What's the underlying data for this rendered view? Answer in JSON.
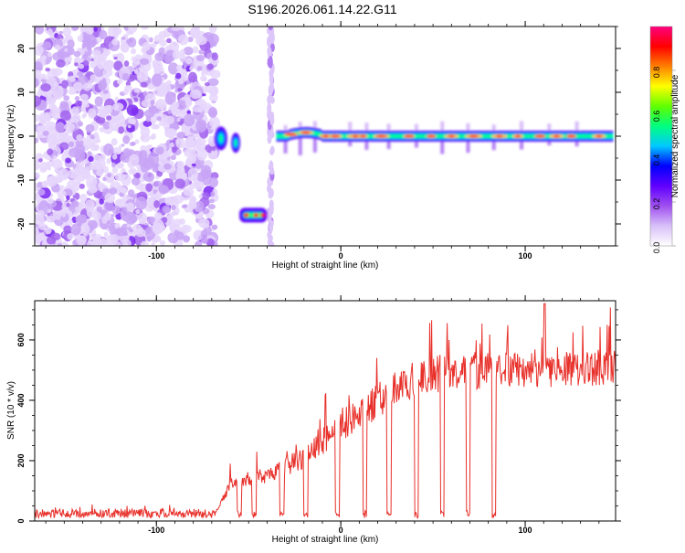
{
  "title": "S196.2026.061.14.22.G11",
  "chart_data": [
    {
      "type": "heatmap",
      "xlabel": "Height of straight line (km)",
      "ylabel": "Frequency (Hz)",
      "xlim": [
        -166,
        149
      ],
      "ylim": [
        -25,
        25
      ],
      "xticks": [
        -100,
        0,
        100
      ],
      "yticks": [
        -20,
        -10,
        0,
        10,
        20
      ],
      "colorbar": {
        "label": "Normalized spectral amplitude",
        "range": [
          0,
          1
        ],
        "ticks": [
          "0.0",
          "0.2",
          "0.4",
          "0.6",
          "0.8"
        ],
        "colors": [
          "#ffffff",
          "#d8c0f8",
          "#a050f0",
          "#6000ff",
          "#0000ff",
          "#00c8ff",
          "#00ff80",
          "#60ff00",
          "#ffff00",
          "#ff8000",
          "#ff0000",
          "#ff0080"
        ]
      },
      "features": [
        {
          "name": "noise-region",
          "x_range": [
            -166,
            -68
          ],
          "y_range": [
            -25,
            25
          ],
          "amplitude": 0.1
        },
        {
          "name": "blob-a",
          "x": -65,
          "y": -0.5,
          "amplitude": 0.4
        },
        {
          "name": "blob-b",
          "x": -57,
          "y": -1.5,
          "amplitude": 0.35
        },
        {
          "name": "low-band",
          "x_range": [
            -55,
            -40
          ],
          "y": -18,
          "amplitude": 0.7
        },
        {
          "name": "vertical-streak",
          "x": -38,
          "y_range": [
            -25,
            25
          ],
          "amplitude": 0.15
        },
        {
          "name": "main-line",
          "x_range": [
            -35,
            149
          ],
          "y": 0,
          "amplitude": 0.75
        }
      ]
    },
    {
      "type": "line",
      "xlabel": "Height of straight line (km)",
      "ylabel": "SNR (10 * v/v)",
      "xlim": [
        -166,
        149
      ],
      "ylim": [
        0,
        730
      ],
      "xticks": [
        -100,
        0,
        100
      ],
      "yticks": [
        0,
        200,
        400,
        600
      ],
      "series": [
        {
          "name": "SNR",
          "color": "#e8302a",
          "envelope_x": [
            -166,
            -68,
            -60,
            -50,
            -40,
            -30,
            -20,
            -10,
            0,
            10,
            20,
            30,
            40,
            60,
            80,
            100,
            120,
            149
          ],
          "envelope_y": [
            25,
            25,
            120,
            140,
            150,
            180,
            210,
            260,
            320,
            360,
            400,
            440,
            470,
            490,
            500,
            500,
            505,
            510
          ],
          "dropouts_x": [
            -55,
            -47,
            -32,
            -19,
            -2,
            13,
            26,
            41,
            55,
            69,
            83
          ]
        }
      ]
    }
  ]
}
